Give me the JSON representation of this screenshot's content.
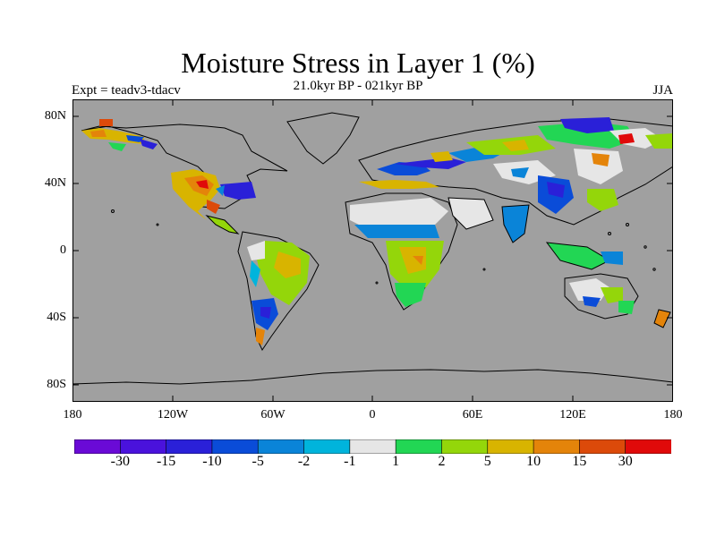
{
  "header": {
    "title": "Moisture Stress in Layer 1 (%)",
    "subtitle": "21.0kyr BP - 021kyr BP",
    "left_label": "Expt = teadv3-tdacv",
    "right_label": "JJA"
  },
  "map": {
    "background_color": "#a0a0a0",
    "lat_ticks": [
      "80N",
      "40N",
      "0",
      "40S",
      "80S"
    ],
    "lon_ticks": [
      "180",
      "120W",
      "60W",
      "0",
      "60E",
      "120E",
      "180"
    ]
  },
  "colorbar": {
    "colors": [
      "#6a0ad6",
      "#4a12dc",
      "#2a20d8",
      "#0a4cd8",
      "#0a84d8",
      "#00b4dc",
      "#e6e6e6",
      "#22d654",
      "#94d60a",
      "#d8b400",
      "#e4840a",
      "#dc4a0a",
      "#e00a0a"
    ],
    "labels": [
      "-30",
      "-15",
      "-10",
      "-5",
      "-2",
      "-1",
      "1",
      "2",
      "5",
      "10",
      "15",
      "30"
    ]
  }
}
